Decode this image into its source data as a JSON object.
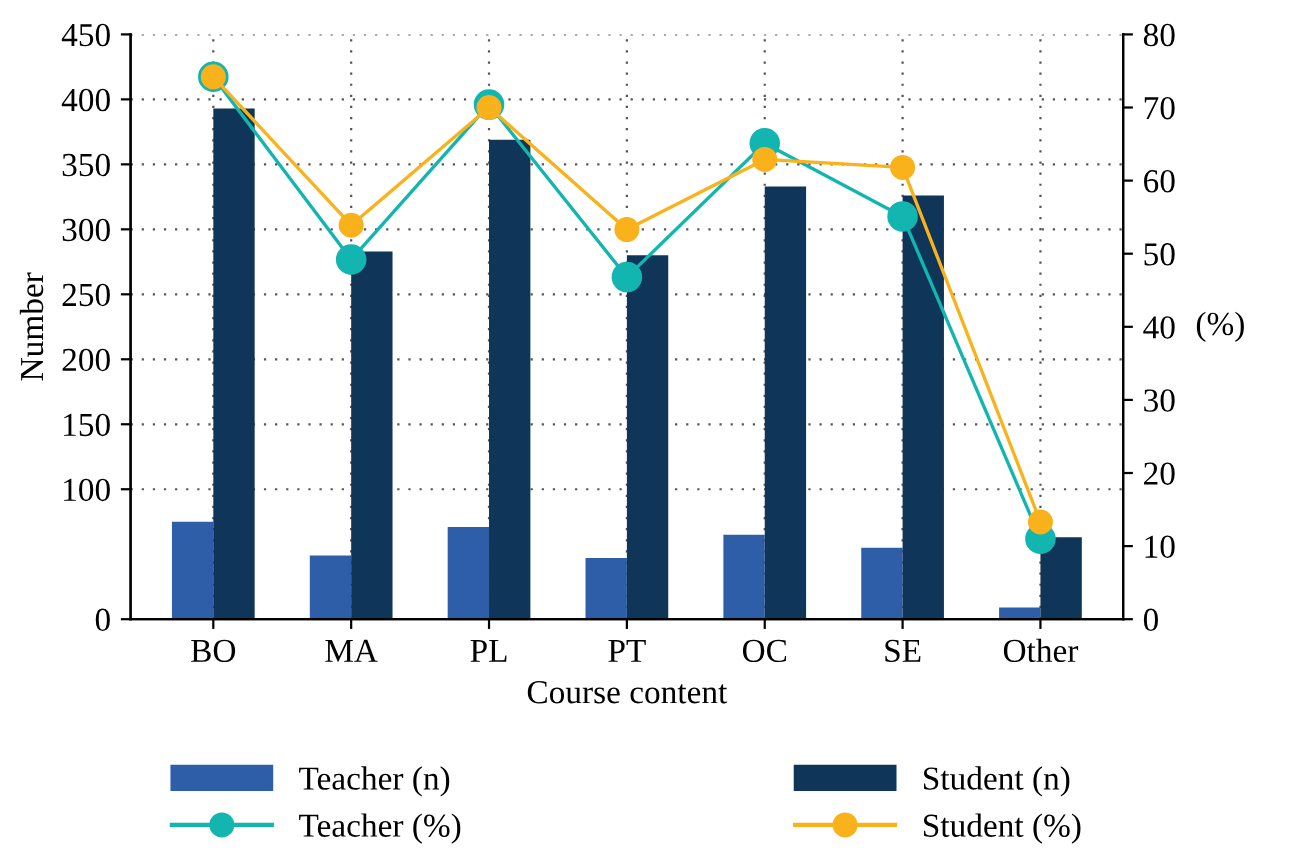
{
  "chart_data": {
    "type": "bar",
    "xlabel": "Course content",
    "ylabel": "Number",
    "y2label": "(%)",
    "categories": [
      "BO",
      "MA",
      "PL",
      "PT",
      "OC",
      "SE",
      "Other"
    ],
    "series": [
      {
        "name": "Teacher (n)",
        "color": "#2f5ea8",
        "values": [
          75,
          49,
          71,
          47,
          65,
          55,
          9
        ]
      },
      {
        "name": "Student (n)",
        "color": "#0f3558",
        "values": [
          393,
          283,
          369,
          280,
          333,
          326,
          63
        ]
      },
      {
        "name": "Teacher (%)",
        "type": "line",
        "axis": "y2",
        "color": "#13b5b1",
        "values": [
          74.2,
          49.2,
          70.4,
          46.8,
          65.1,
          55.1,
          11.0
        ]
      },
      {
        "name": "Student (%)",
        "type": "line",
        "axis": "y2",
        "color": "#f9b21b",
        "values": [
          74.2,
          53.9,
          70.0,
          53.3,
          62.9,
          61.8,
          13.3
        ]
      }
    ],
    "ylim": [
      0,
      450
    ],
    "yticks": [
      0,
      100,
      150,
      200,
      250,
      300,
      350,
      400,
      450
    ],
    "y2lim": [
      0,
      80
    ],
    "y2ticks": [
      0,
      10,
      20,
      30,
      40,
      50,
      60,
      70,
      80
    ],
    "grid": true,
    "legend": "bottom",
    "marker": "circle"
  }
}
